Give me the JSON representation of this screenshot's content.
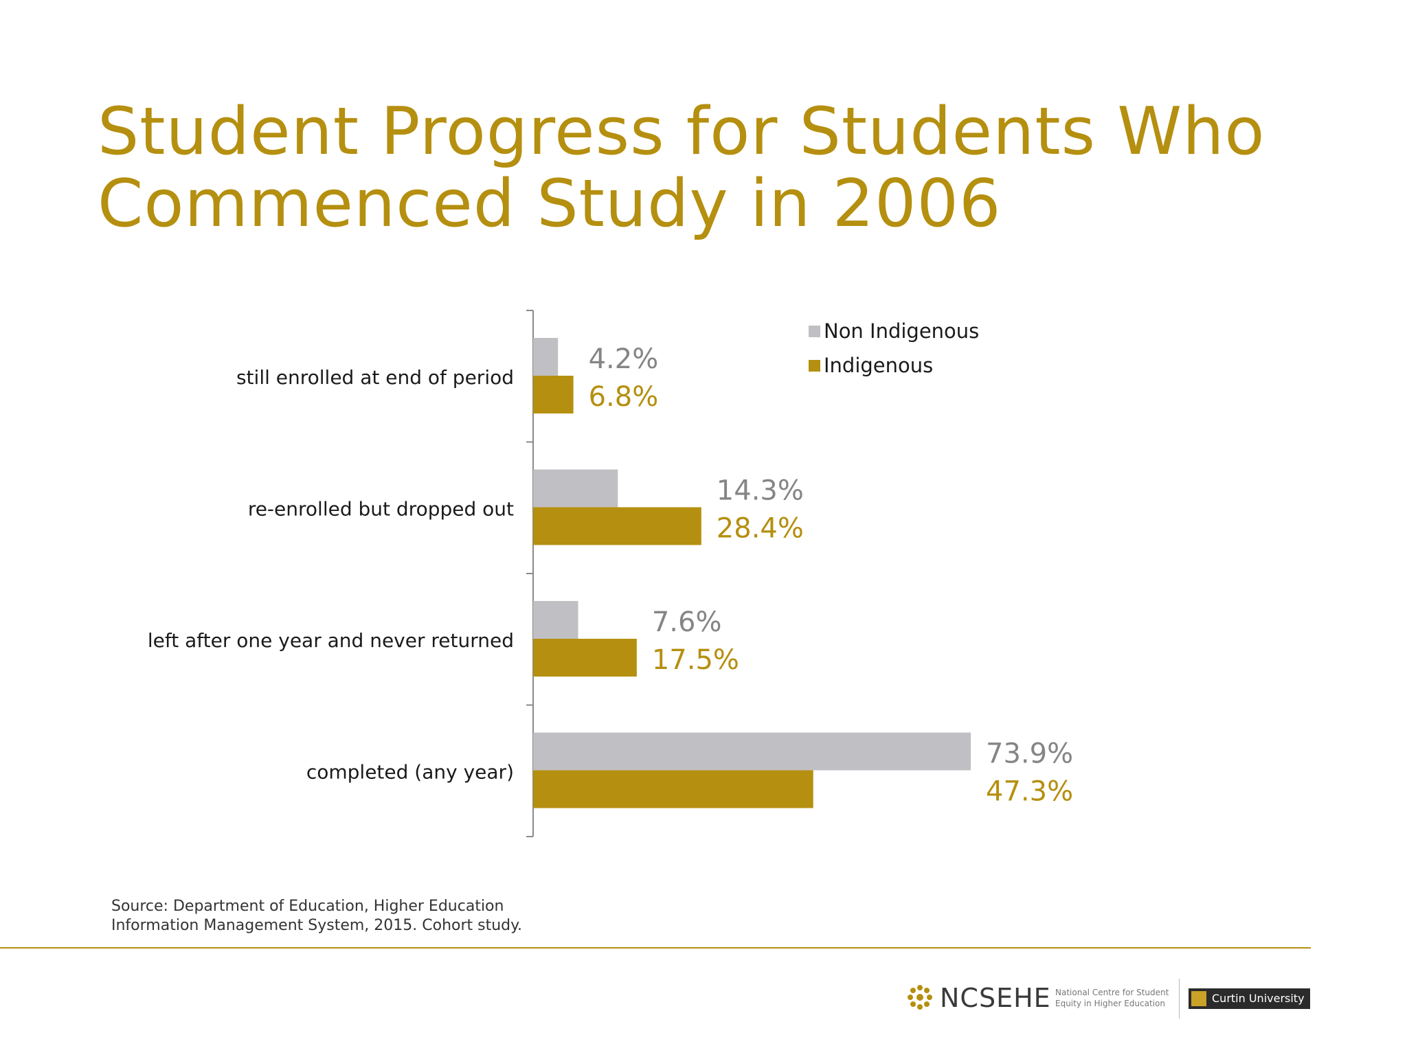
{
  "title_lines": [
    "Student Progress for Students Who",
    "Commenced Study in 2006"
  ],
  "colors": {
    "accent": "#b58f0f",
    "non_indigenous": "#c0bfc3",
    "indigenous": "#b58f0f",
    "non_indigenous_text": "#858585"
  },
  "chart_data": {
    "type": "bar",
    "orientation": "horizontal",
    "categories": [
      "still enrolled at end of period",
      "re-enrolled but dropped out",
      "left after one year and never returned",
      "completed (any year)"
    ],
    "series": [
      {
        "name": "Non Indigenous",
        "values": [
          4.2,
          14.3,
          7.6,
          73.9
        ],
        "labels": [
          "4.2%",
          "14.3%",
          "7.6%",
          "73.9%"
        ]
      },
      {
        "name": "Indigenous",
        "values": [
          6.8,
          28.4,
          17.5,
          47.3
        ],
        "labels": [
          "6.8%",
          "28.4%",
          "17.5%",
          "47.3%"
        ]
      }
    ],
    "unit": "%",
    "xlim": [
      0,
      80
    ],
    "grid": false,
    "legend_position": "top-right"
  },
  "source": {
    "line1": "Source: Department of Education, Higher Education",
    "line2": "Information Management System, 2015. Cohort study."
  },
  "footer": {
    "ncsehe_name": "NCSEHE",
    "ncsehe_subtitle": "National Centre for Student Equity in Higher Education",
    "curtin_name": "Curtin University",
    "ncsehe_icon": "ncsehe-logo-icon",
    "curtin_icon": "curtin-logo-icon"
  }
}
